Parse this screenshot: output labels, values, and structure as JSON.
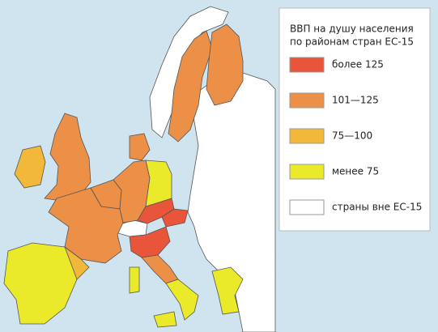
{
  "legend": {
    "title": [
      "ВВП на душу населения",
      "по районам стран ЕС-15"
    ],
    "items": [
      {
        "label": "более 125",
        "color": "#e8553a"
      },
      {
        "label": "101—125",
        "color": "#ec9048"
      },
      {
        "label": "75—100",
        "color": "#f2b83a"
      },
      {
        "label": "менее 75",
        "color": "#eaea2a"
      },
      {
        "label": "страны вне ЕС-15",
        "color": "#ffffff"
      }
    ]
  }
}
